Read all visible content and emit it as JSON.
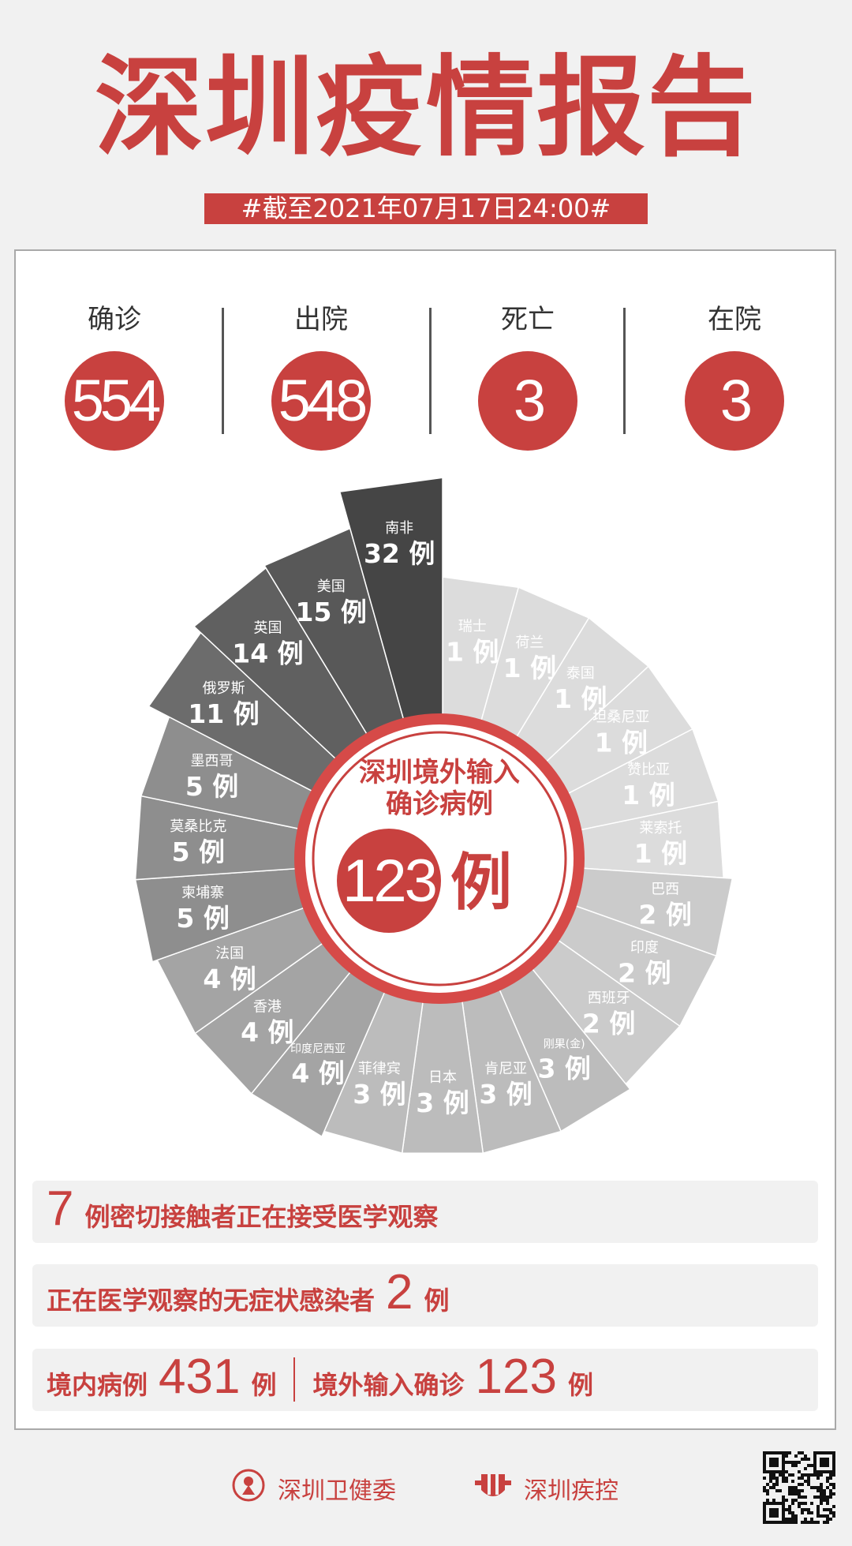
{
  "title": "深圳疫情报告",
  "date_banner": "#截至2021年07月17日24:00#",
  "stats": [
    {
      "label": "确诊",
      "value": "554"
    },
    {
      "label": "出院",
      "value": "548"
    },
    {
      "label": "死亡",
      "value": "3"
    },
    {
      "label": "在院",
      "value": "3"
    }
  ],
  "chart_data": {
    "type": "pie",
    "variant": "rose (equal-angle wedges, radius/shade by value)",
    "center": {
      "line1": "深圳境外输入",
      "line2": "确诊病例",
      "total": "123",
      "unit": "例"
    },
    "unit": "例",
    "categories": [
      "瑞士",
      "荷兰",
      "泰国",
      "坦桑尼亚",
      "赞比亚",
      "莱索托",
      "巴西",
      "印度",
      "西班牙",
      "刚果(金)",
      "肯尼亚",
      "日本",
      "菲律宾",
      "印度尼西亚",
      "香港",
      "法国",
      "柬埔寨",
      "莫桑比克",
      "墨西哥",
      "俄罗斯",
      "英国",
      "美国",
      "南非"
    ],
    "values": [
      1,
      1,
      1,
      1,
      1,
      1,
      2,
      2,
      2,
      3,
      3,
      3,
      3,
      4,
      4,
      4,
      5,
      5,
      5,
      11,
      14,
      15,
      32
    ],
    "accent": "#c8413f"
  },
  "info": {
    "close_contacts": {
      "value": "7",
      "text": "例密切接触者正在接受医学观察"
    },
    "asymptomatic": {
      "text": "正在医学观察的无症状感染者",
      "value": "2",
      "unit": "例"
    },
    "local": {
      "label": "境内病例",
      "value": "431",
      "unit": "例"
    },
    "imported": {
      "label": "境外输入确诊",
      "value": "123",
      "unit": "例"
    }
  },
  "footer": {
    "org1": "深圳卫健委",
    "org2": "深圳疾控"
  }
}
